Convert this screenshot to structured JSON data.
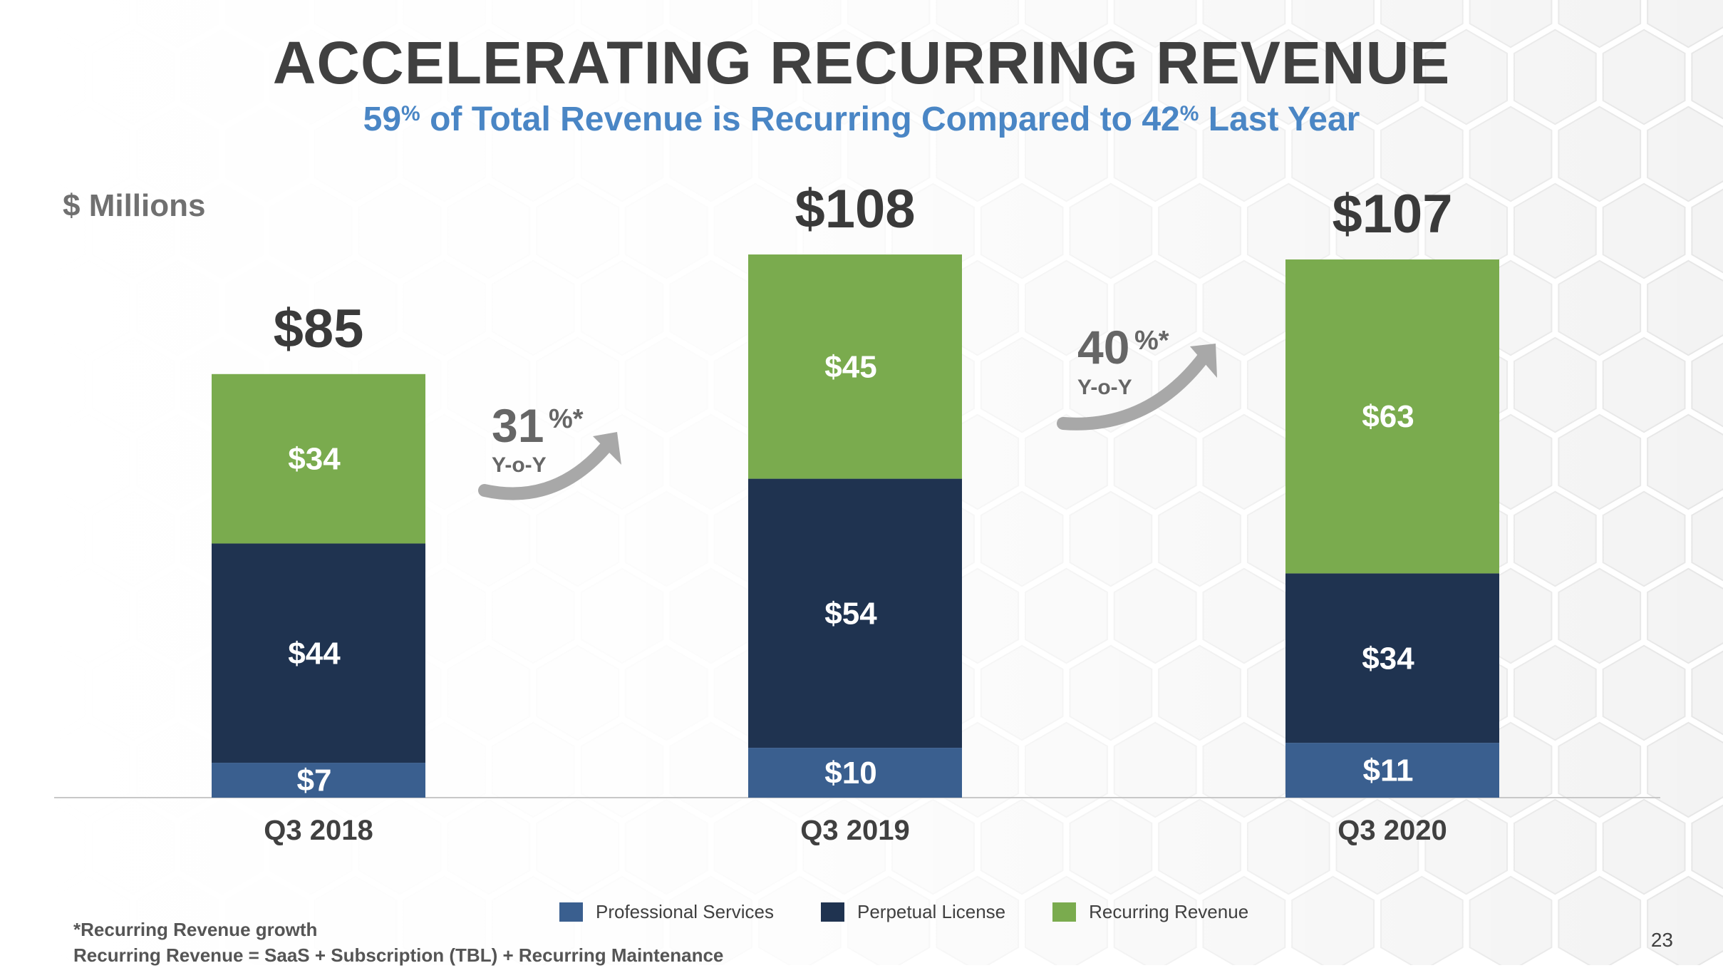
{
  "slide": {
    "title": "ACCELERATING RECURRING REVENUE",
    "subtitle_pct_1": "59",
    "subtitle_pct_sign": "%",
    "subtitle_mid": " of Total Revenue is Recurring Compared to ",
    "subtitle_pct_2": "42",
    "subtitle_end": " Last Year",
    "units": "$ Millions",
    "footnote_1": "*Recurring Revenue growth",
    "footnote_2": "Recurring Revenue = SaaS + Subscription (TBL) + Recurring Maintenance",
    "page_number": "23"
  },
  "growth_callouts": [
    {
      "value": "31",
      "suffix": "%*",
      "label": "Y-o-Y"
    },
    {
      "value": "40",
      "suffix": "%*",
      "label": "Y-o-Y"
    }
  ],
  "colors": {
    "professional_services": "#3a5f8f",
    "perpetual_license": "#1f3350",
    "recurring_revenue": "#7aab4e",
    "total_label": "#3a3a3a",
    "arrow": "#a8a8a8"
  },
  "chart_data": {
    "type": "bar",
    "stacked": true,
    "categories": [
      "Q3 2018",
      "Q3 2019",
      "Q3 2020"
    ],
    "series": [
      {
        "name": "Professional Services",
        "values": [
          7,
          10,
          11
        ],
        "labels": [
          "$7",
          "$10",
          "$11"
        ]
      },
      {
        "name": "Perpetual License",
        "values": [
          44,
          54,
          34
        ],
        "labels": [
          "$44",
          "$54",
          "$34"
        ]
      },
      {
        "name": "Recurring Revenue",
        "values": [
          34,
          45,
          63
        ],
        "labels": [
          "$34",
          "$45",
          "$63"
        ]
      }
    ],
    "totals": [
      85,
      108,
      107
    ],
    "total_labels": [
      "$85",
      "$108",
      "$107"
    ],
    "ylabel": "$ Millions",
    "ylim": [
      0,
      108
    ],
    "grid": false,
    "legend_position": "bottom"
  }
}
